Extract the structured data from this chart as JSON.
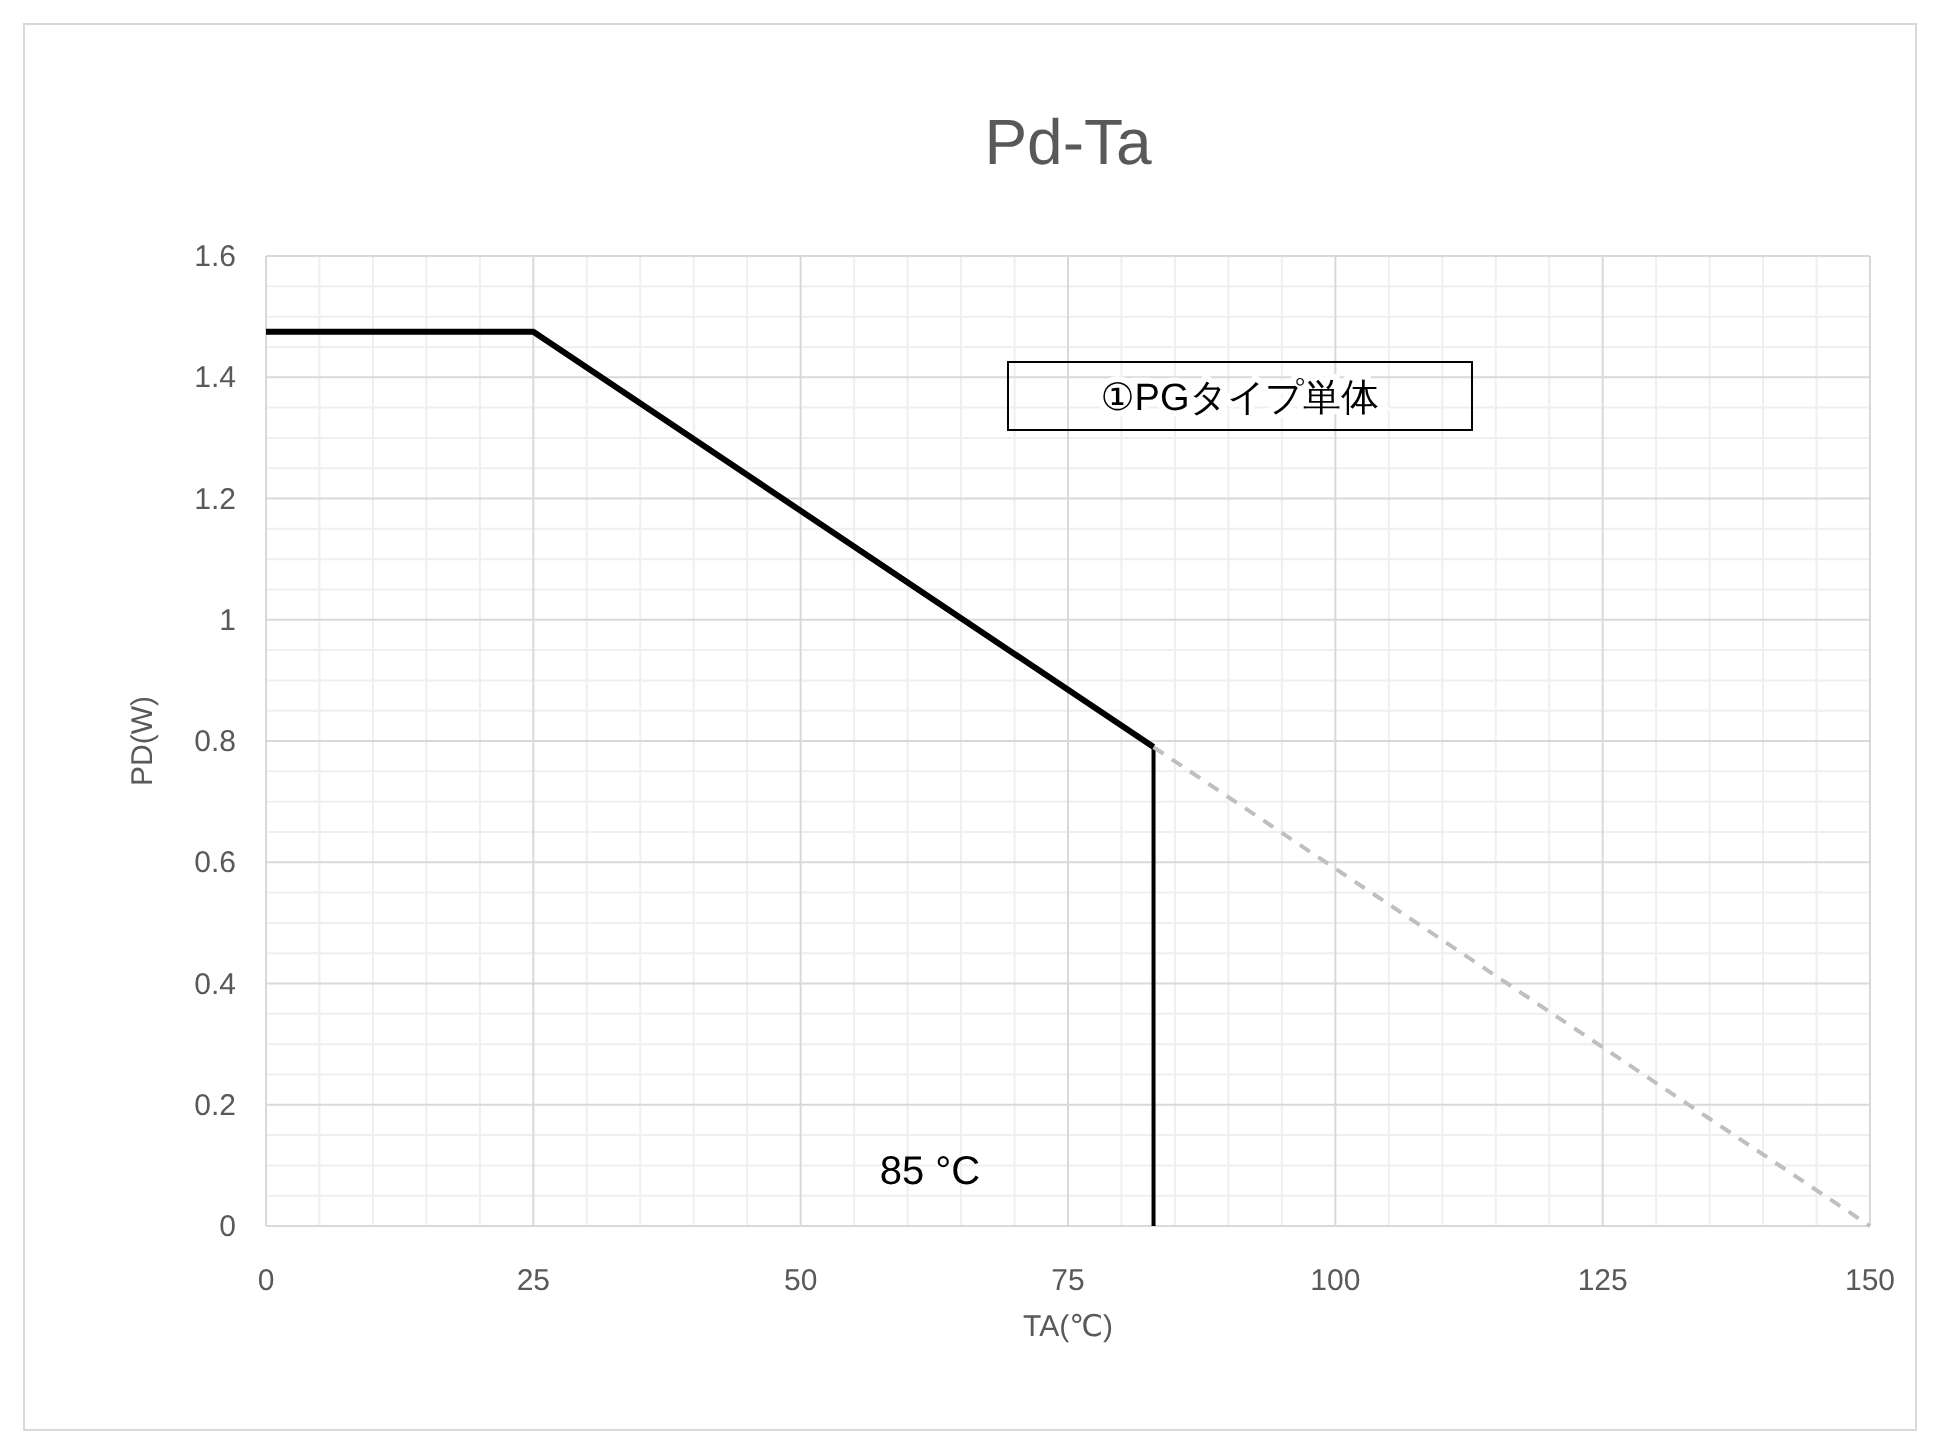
{
  "chart_data": {
    "type": "line",
    "title": "Pd-Ta",
    "xlabel": "TA(℃)",
    "ylabel": "PD(W)",
    "xlim": [
      0,
      150
    ],
    "xticks": [
      0,
      25,
      50,
      75,
      100,
      125,
      150
    ],
    "ylim": [
      0,
      1.6
    ],
    "yticks": [
      0,
      0.2,
      0.4,
      0.6,
      0.8,
      1,
      1.2,
      1.4,
      1.6
    ],
    "grid": true,
    "series": [
      {
        "x": [
          0,
          25,
          83
        ],
        "values": [
          1.475,
          1.475,
          0.79
        ],
        "color": "#000000",
        "line_style": "solid"
      },
      {
        "x": [
          83,
          83
        ],
        "values": [
          0.79,
          0
        ],
        "color": "#000000",
        "line_style": "solid"
      },
      {
        "x": [
          83,
          150
        ],
        "values": [
          0.79,
          0
        ],
        "color": "#bfbfbf",
        "line_style": "dashed"
      }
    ],
    "annotations": [
      "85 °C",
      "①PGタイプ単体"
    ]
  }
}
